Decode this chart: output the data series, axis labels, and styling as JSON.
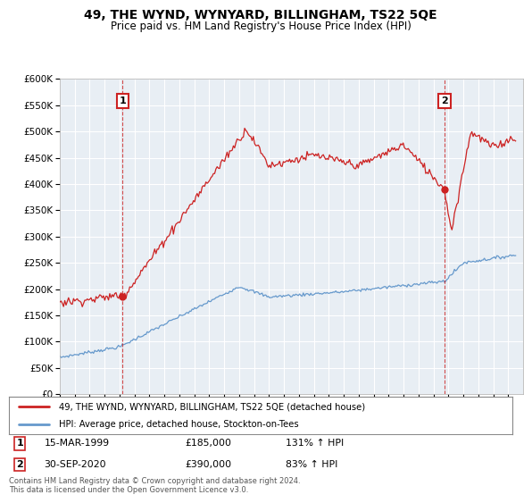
{
  "title": "49, THE WYND, WYNYARD, BILLINGHAM, TS22 5QE",
  "subtitle": "Price paid vs. HM Land Registry's House Price Index (HPI)",
  "legend_line1": "49, THE WYND, WYNYARD, BILLINGHAM, TS22 5QE (detached house)",
  "legend_line2": "HPI: Average price, detached house, Stockton-on-Tees",
  "footnote": "Contains HM Land Registry data © Crown copyright and database right 2024.\nThis data is licensed under the Open Government Licence v3.0.",
  "point1_label": "1",
  "point1_date": "15-MAR-1999",
  "point1_price": "£185,000",
  "point1_hpi": "131% ↑ HPI",
  "point2_label": "2",
  "point2_date": "30-SEP-2020",
  "point2_price": "£390,000",
  "point2_hpi": "83% ↑ HPI",
  "hpi_color": "#6699CC",
  "price_color": "#CC2222",
  "marker_color": "#CC2222",
  "ylim_min": 0,
  "ylim_max": 600000,
  "ytick_step": 50000,
  "bg_color": "#ffffff",
  "plot_bg_color": "#E8EEF4",
  "grid_color": "#ffffff",
  "annotation_box_color": "#CC2222",
  "t1": 1999.21,
  "t2": 2020.75,
  "p1_val": 185000,
  "p2_val": 390000
}
